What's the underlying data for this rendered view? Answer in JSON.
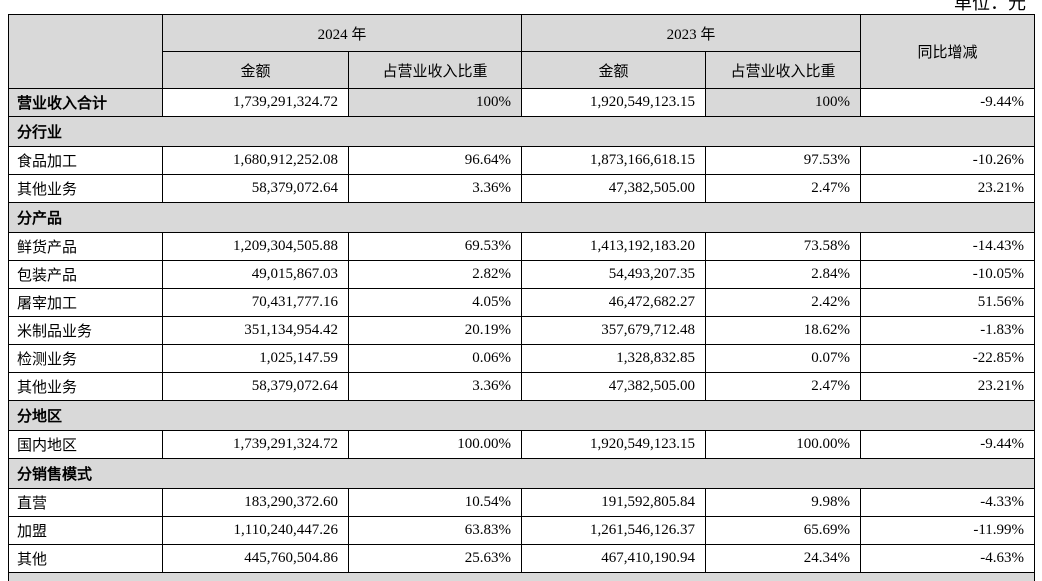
{
  "page": {
    "unit_note": "单位：元"
  },
  "colors": {
    "shade_bg": "#d9d9d9",
    "border": "#000000",
    "text": "#000000",
    "page_bg": "#ffffff"
  },
  "table": {
    "header": {
      "year_2024": "2024 年",
      "year_2023": "2023 年",
      "yoy": "同比增减",
      "amount_2024": "金额",
      "pct_2024": "占营业收入比重",
      "amount_2023": "金额",
      "pct_2023": "占营业收入比重"
    },
    "rows": [
      {
        "type": "total",
        "label": "营业收入合计",
        "a24": "1,739,291,324.72",
        "p24": "100%",
        "a23": "1,920,549,123.15",
        "p23": "100%",
        "yoy": "-9.44%"
      },
      {
        "type": "section",
        "label": "分行业"
      },
      {
        "type": "data",
        "label": "食品加工",
        "a24": "1,680,912,252.08",
        "p24": "96.64%",
        "a23": "1,873,166,618.15",
        "p23": "97.53%",
        "yoy": "-10.26%"
      },
      {
        "type": "data",
        "label": "其他业务",
        "a24": "58,379,072.64",
        "p24": "3.36%",
        "a23": "47,382,505.00",
        "p23": "2.47%",
        "yoy": "23.21%"
      },
      {
        "type": "section",
        "label": "分产品"
      },
      {
        "type": "data",
        "label": "鲜货产品",
        "a24": "1,209,304,505.88",
        "p24": "69.53%",
        "a23": "1,413,192,183.20",
        "p23": "73.58%",
        "yoy": "-14.43%"
      },
      {
        "type": "data",
        "label": "包装产品",
        "a24": "49,015,867.03",
        "p24": "2.82%",
        "a23": "54,493,207.35",
        "p23": "2.84%",
        "yoy": "-10.05%"
      },
      {
        "type": "data",
        "label": "屠宰加工",
        "a24": "70,431,777.16",
        "p24": "4.05%",
        "a23": "46,472,682.27",
        "p23": "2.42%",
        "yoy": "51.56%"
      },
      {
        "type": "data",
        "label": "米制品业务",
        "a24": "351,134,954.42",
        "p24": "20.19%",
        "a23": "357,679,712.48",
        "p23": "18.62%",
        "yoy": "-1.83%"
      },
      {
        "type": "data",
        "label": "检测业务",
        "a24": "1,025,147.59",
        "p24": "0.06%",
        "a23": "1,328,832.85",
        "p23": "0.07%",
        "yoy": "-22.85%"
      },
      {
        "type": "data",
        "label": "其他业务",
        "a24": "58,379,072.64",
        "p24": "3.36%",
        "a23": "47,382,505.00",
        "p23": "2.47%",
        "yoy": "23.21%"
      },
      {
        "type": "section",
        "label": "分地区"
      },
      {
        "type": "data",
        "label": "国内地区",
        "a24": "1,739,291,324.72",
        "p24": "100.00%",
        "a23": "1,920,549,123.15",
        "p23": "100.00%",
        "yoy": "-9.44%"
      },
      {
        "type": "section",
        "label": "分销售模式"
      },
      {
        "type": "data",
        "label": "直营",
        "a24": "183,290,372.60",
        "p24": "10.54%",
        "a23": "191,592,805.84",
        "p23": "9.98%",
        "yoy": "-4.33%"
      },
      {
        "type": "data",
        "label": "加盟",
        "a24": "1,110,240,447.26",
        "p24": "63.83%",
        "a23": "1,261,546,126.37",
        "p23": "65.69%",
        "yoy": "-11.99%"
      },
      {
        "type": "data",
        "label": "其他",
        "a24": "445,760,504.86",
        "p24": "25.63%",
        "a23": "467,410,190.94",
        "p23": "24.34%",
        "yoy": "-4.63%"
      },
      {
        "type": "partial",
        "label": ""
      }
    ]
  }
}
